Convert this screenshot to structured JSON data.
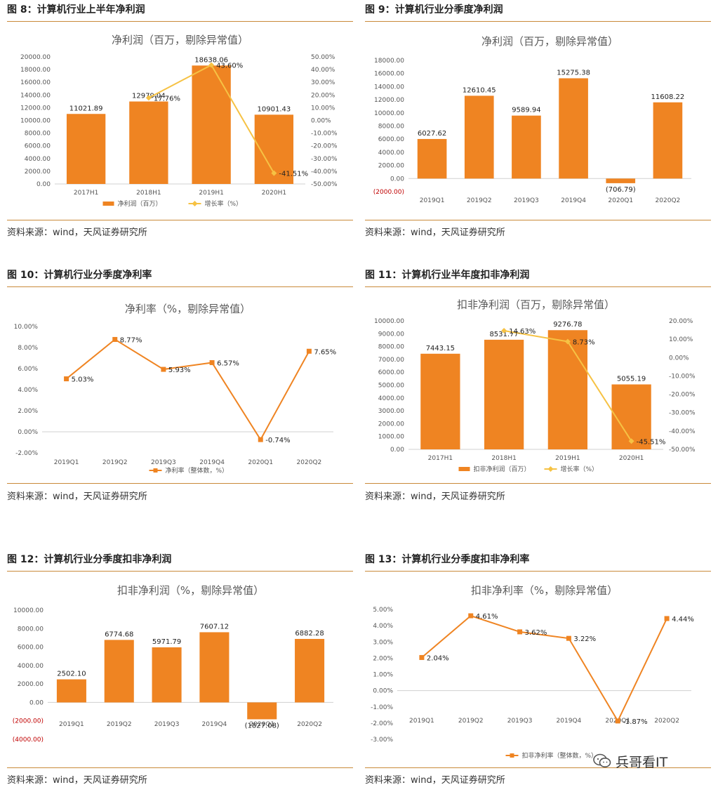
{
  "colors": {
    "bar": "#ef8422",
    "line": "#f6c244",
    "negLabel": "#c00000",
    "axis": "#555555",
    "rule": "#c98a3a"
  },
  "source_text": "资料来源：wind，天风证券研究所",
  "watermark": {
    "text": "兵哥看IT",
    "icon": "wechat-icon"
  },
  "chart_data": [
    {
      "type": "bar+line",
      "fig_title": "图 8：计算机行业上半年净利润",
      "title": "净利润（百万，剔除异常值）",
      "categories": [
        "2017H1",
        "2018H1",
        "2019H1",
        "2020H1"
      ],
      "bar_values": [
        11021.89,
        12979.04,
        18638.06,
        10901.43
      ],
      "bar_labels": [
        "11021.89",
        "12979.04",
        "18638.06",
        "10901.43"
      ],
      "line_values": [
        null,
        17.76,
        43.6,
        -41.51
      ],
      "line_labels": [
        "",
        "17.76%",
        "43.60%",
        "-41.51%"
      ],
      "ylim": [
        0,
        20000
      ],
      "ystep": 2000,
      "ytick_labels": [
        "0.00",
        "2000.00",
        "4000.00",
        "6000.00",
        "8000.00",
        "10000.00",
        "12000.00",
        "14000.00",
        "16000.00",
        "18000.00",
        "20000.00"
      ],
      "y2lim": [
        -50,
        50
      ],
      "y2step": 10,
      "y2tick_labels": [
        "-50.00%",
        "-40.00%",
        "-30.00%",
        "-20.00%",
        "-10.00%",
        "0.00%",
        "10.00%",
        "20.00%",
        "30.00%",
        "40.00%",
        "50.00%"
      ],
      "legend": [
        "净利润（百万）",
        "增长率（%）"
      ]
    },
    {
      "type": "bar",
      "fig_title": "图 9：计算机行业分季度净利润",
      "title": "净利润（百万，剔除异常值）",
      "categories": [
        "2019Q1",
        "2019Q2",
        "2019Q3",
        "2019Q4",
        "2020Q1",
        "2020Q2"
      ],
      "bar_values": [
        6027.62,
        12610.45,
        9589.94,
        15275.38,
        -706.79,
        11608.22
      ],
      "bar_labels": [
        "6027.62",
        "12610.45",
        "9589.94",
        "15275.38",
        "(706.79)",
        "11608.22"
      ],
      "ylim": [
        -2000,
        18000
      ],
      "ystep": 2000,
      "ytick_labels": [
        "(2000.00)",
        "0.00",
        "2000.00",
        "4000.00",
        "6000.00",
        "8000.00",
        "10000.00",
        "12000.00",
        "14000.00",
        "16000.00",
        "18000.00"
      ]
    },
    {
      "type": "line",
      "fig_title": "图 10：计算机行业分季度净利率",
      "title": "净利率（%，剔除异常值）",
      "categories": [
        "2019Q1",
        "2019Q2",
        "2019Q3",
        "2019Q4",
        "2020Q1",
        "2020Q2"
      ],
      "line_values": [
        5.03,
        8.77,
        5.93,
        6.57,
        -0.74,
        7.65
      ],
      "line_labels": [
        "5.03%",
        "8.77%",
        "5.93%",
        "6.57%",
        "-0.74%",
        "7.65%"
      ],
      "ylim": [
        -2,
        10
      ],
      "ystep": 2,
      "ytick_labels": [
        "-2.00%",
        "0.00%",
        "2.00%",
        "4.00%",
        "6.00%",
        "8.00%",
        "10.00%"
      ],
      "legend": [
        "净利率（整体数，%）"
      ]
    },
    {
      "type": "bar+line",
      "fig_title": "图 11：计算机行业半年度扣非净利润",
      "title": "扣非净利润（百万，剔除异常值）",
      "categories": [
        "2017H1",
        "2018H1",
        "2019H1",
        "2020H1"
      ],
      "bar_values": [
        7443.15,
        8531.77,
        9276.78,
        5055.19
      ],
      "bar_labels": [
        "7443.15",
        "8531.77",
        "9276.78",
        "5055.19"
      ],
      "line_values": [
        null,
        14.63,
        8.73,
        -45.51
      ],
      "line_labels": [
        "",
        "14.63%",
        "8.73%",
        "-45.51%"
      ],
      "ylim": [
        0,
        10000
      ],
      "ystep": 1000,
      "ytick_labels": [
        "0.00",
        "1000.00",
        "2000.00",
        "3000.00",
        "4000.00",
        "5000.00",
        "6000.00",
        "7000.00",
        "8000.00",
        "9000.00",
        "10000.00"
      ],
      "y2lim": [
        -50,
        20
      ],
      "y2step": 10,
      "y2tick_labels": [
        "-50.00%",
        "-40.00%",
        "-30.00%",
        "-20.00%",
        "-10.00%",
        "0.00%",
        "10.00%",
        "20.00%"
      ],
      "legend": [
        "扣非净利润（百万）",
        "增长率（%）"
      ]
    },
    {
      "type": "bar",
      "fig_title": "图 12：计算机行业分季度扣非净利润",
      "title": "扣非净利润（%，剔除异常值）",
      "categories": [
        "2019Q1",
        "2019Q2",
        "2019Q3",
        "2019Q4",
        "2020Q1",
        "2020Q2"
      ],
      "bar_values": [
        2502.1,
        6774.68,
        5971.79,
        7607.12,
        -1827.08,
        6882.28
      ],
      "bar_labels": [
        "2502.10",
        "6774.68",
        "5971.79",
        "7607.12",
        "(1827.08)",
        "6882.28"
      ],
      "ylim": [
        -4000,
        10000
      ],
      "ystep": 2000,
      "ytick_labels": [
        "(4000.00)",
        "(2000.00)",
        "0.00",
        "2000.00",
        "4000.00",
        "6000.00",
        "8000.00",
        "10000.00"
      ]
    },
    {
      "type": "line",
      "fig_title": "图 13：计算机行业分季度扣非净利率",
      "title": "扣非净利率（%，剔除异常值）",
      "categories": [
        "2019Q1",
        "2019Q2",
        "2019Q3",
        "2019Q4",
        "2020Q1",
        "2020Q2"
      ],
      "line_values": [
        2.04,
        4.61,
        3.62,
        3.22,
        -1.87,
        4.44
      ],
      "line_labels": [
        "2.04%",
        "4.61%",
        "3.62%",
        "3.22%",
        "-1.87%",
        "4.44%"
      ],
      "ylim": [
        -3,
        5
      ],
      "ystep": 1,
      "ytick_labels": [
        "-3.00%",
        "-2.00%",
        "-1.00%",
        "0.00%",
        "1.00%",
        "2.00%",
        "3.00%",
        "4.00%",
        "5.00%"
      ],
      "legend": [
        "扣非净利率（整体数，%）"
      ]
    }
  ]
}
